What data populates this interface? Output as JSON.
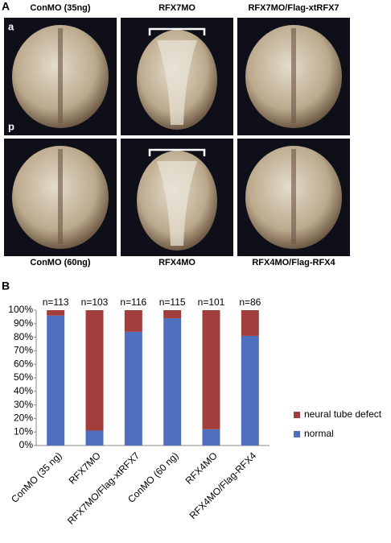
{
  "panel_a": {
    "label": "A",
    "top_labels": [
      "ConMO (35ng)",
      "RFX7MO",
      "RFX7MO/Flag-xtRFX7"
    ],
    "bottom_labels": [
      "ConMO (60ng)",
      "RFX4MO",
      "RFX4MO/Flag-RFX4"
    ],
    "orientation_labels": [
      "a",
      "p"
    ]
  },
  "chart_data": {
    "type": "stacked_bar",
    "panel_label": "B",
    "categories": [
      "ConMO (35 ng)",
      "RFX7MO",
      "RFX7MO/Flag-xtRFX7",
      "ConMO (60 ng)",
      "RFX4MO",
      "RFX4MO/Flag-RFX4"
    ],
    "annotations": [
      "n=113",
      "n=103",
      "n=116",
      "n=115",
      "n=101",
      "n=86"
    ],
    "series": [
      {
        "name": "normal",
        "color": "#4f70be",
        "values": [
          96,
          11,
          84,
          94,
          12,
          81
        ]
      },
      {
        "name": "neural tube defect",
        "color": "#a23e3b",
        "values": [
          4,
          89,
          16,
          6,
          88,
          19
        ]
      }
    ],
    "ylim": [
      0,
      100
    ],
    "yticks": [
      {
        "value": 0,
        "label": "0%"
      },
      {
        "value": 10,
        "label": "10%"
      },
      {
        "value": 20,
        "label": "20%"
      },
      {
        "value": 30,
        "label": "30%"
      },
      {
        "value": 40,
        "label": "40%"
      },
      {
        "value": 50,
        "label": "50%"
      },
      {
        "value": 60,
        "label": "60%"
      },
      {
        "value": 70,
        "label": "70%"
      },
      {
        "value": 80,
        "label": "80%"
      },
      {
        "value": 90,
        "label": "90%"
      },
      {
        "value": 100,
        "label": "100%"
      }
    ],
    "grid": false,
    "legend": "right"
  }
}
